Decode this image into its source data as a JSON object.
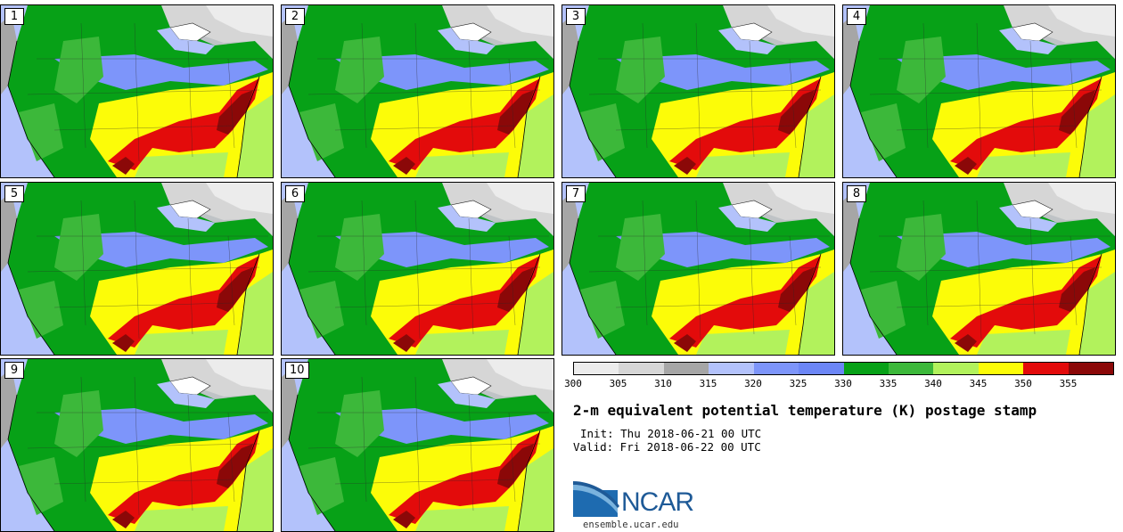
{
  "panels": [
    {
      "label": "1"
    },
    {
      "label": "2"
    },
    {
      "label": "3"
    },
    {
      "label": "4"
    },
    {
      "label": "5"
    },
    {
      "label": "6"
    },
    {
      "label": "7"
    },
    {
      "label": "8"
    },
    {
      "label": "9"
    },
    {
      "label": "10"
    }
  ],
  "colorbar": {
    "colors": [
      "#ececec",
      "#d6d6d6",
      "#a6a6a6",
      "#b3c2fb",
      "#7d95fa",
      "#6c86f6",
      "#07a117",
      "#3cb83a",
      "#b2f25c",
      "#fcfc08",
      "#e30b0b",
      "#8b0808"
    ],
    "ticks": [
      "300",
      "305",
      "310",
      "315",
      "320",
      "325",
      "330",
      "335",
      "340",
      "345",
      "350",
      "355"
    ]
  },
  "title": "2-m equivalent potential temperature (K) postage stamp",
  "init": "Init: Thu 2018-06-21 00 UTC",
  "valid": "Valid: Fri 2018-06-22 00 UTC",
  "logo_text": "NCAR",
  "website": "ensemble.ucar.edu"
}
